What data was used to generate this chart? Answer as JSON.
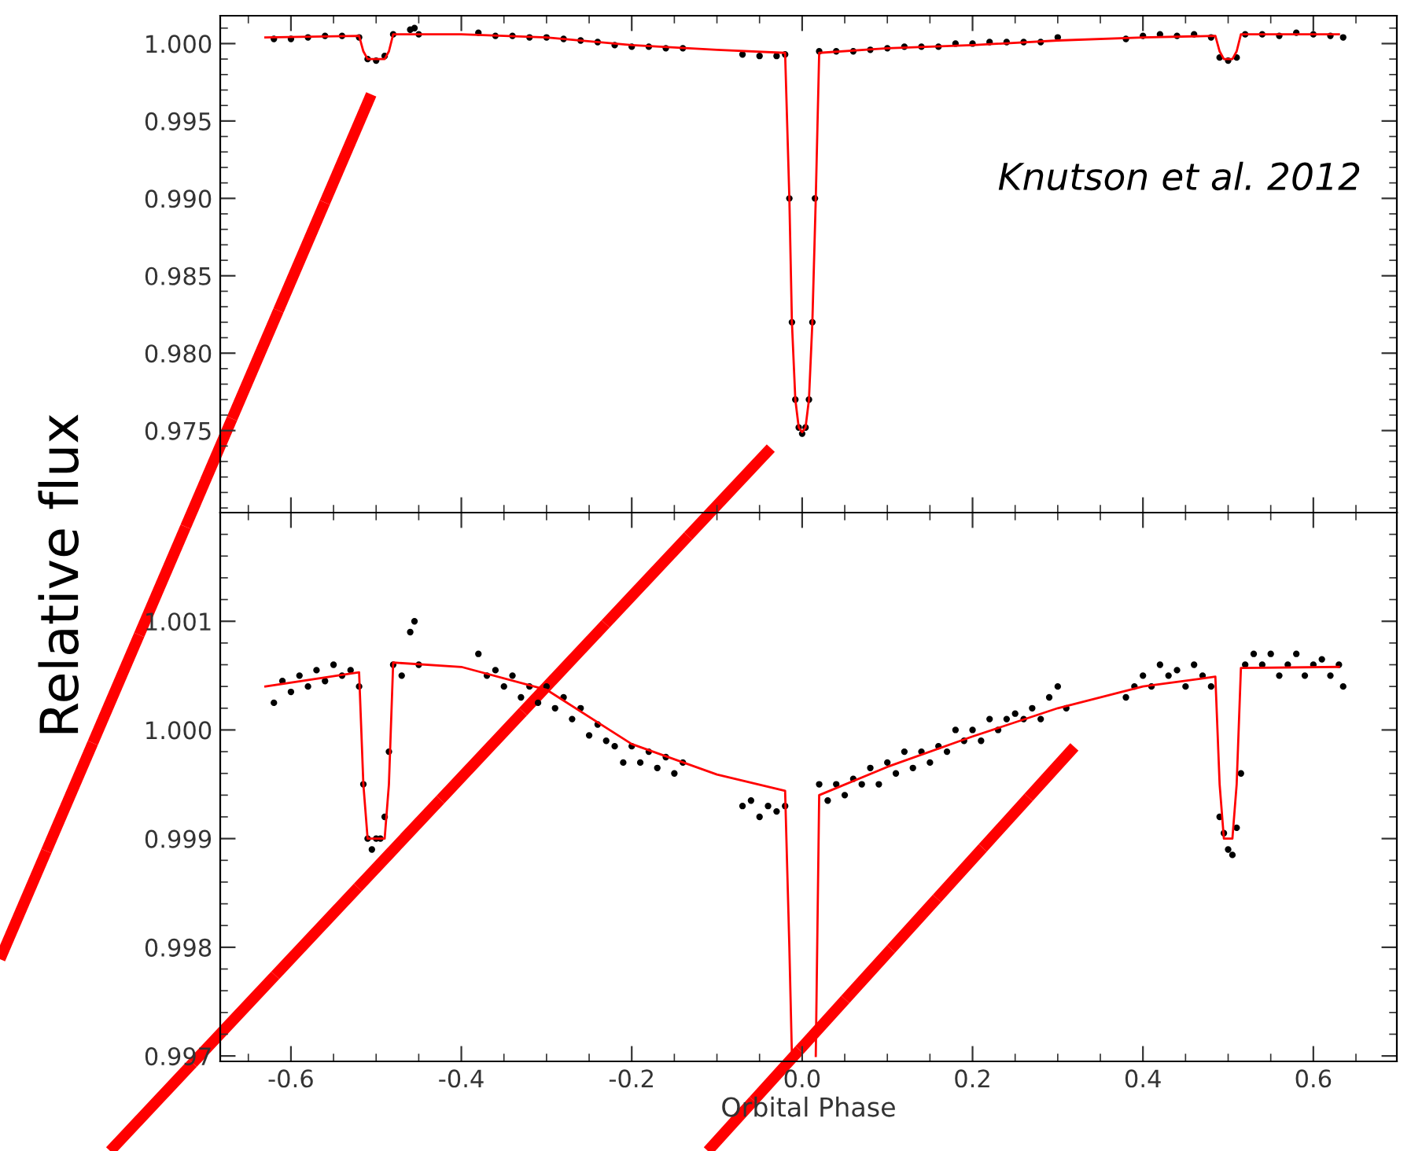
{
  "chart_data": [
    {
      "type": "scatter",
      "ylabel": "Relative flux",
      "annotations": [
        "Knutson et al. 2012"
      ],
      "xlim": [
        -0.683,
        0.698
      ],
      "ylim": [
        0.9697,
        1.0018
      ],
      "xticks": [
        -0.6,
        -0.4,
        -0.2,
        0,
        0.2,
        0.4,
        0.6
      ],
      "yticks": [
        {
          "value": 0.975,
          "label": "0.975"
        },
        {
          "value": 0.98,
          "label": "0.980"
        },
        {
          "value": 0.985,
          "label": "0.985"
        },
        {
          "value": 0.99,
          "label": "0.990"
        },
        {
          "value": 0.995,
          "label": "0.995"
        },
        {
          "value": 1.0,
          "label": "1.000"
        }
      ],
      "tick_labels": "y",
      "grid": false,
      "legend": false,
      "series": [
        {
          "color": "#000000",
          "marker": "circle",
          "x": [
            -0.62,
            -0.6,
            -0.58,
            -0.56,
            -0.54,
            -0.52,
            -0.51,
            -0.5,
            -0.49,
            -0.48,
            -0.46,
            -0.455,
            -0.45,
            -0.38,
            -0.36,
            -0.34,
            -0.32,
            -0.3,
            -0.28,
            -0.26,
            -0.24,
            -0.22,
            -0.2,
            -0.18,
            -0.16,
            -0.14,
            -0.07,
            -0.05,
            -0.03,
            -0.02,
            -0.015,
            -0.012,
            -0.008,
            -0.004,
            0.0,
            0.004,
            0.008,
            0.012,
            0.015,
            0.02,
            0.04,
            0.06,
            0.08,
            0.1,
            0.12,
            0.14,
            0.16,
            0.18,
            0.2,
            0.22,
            0.24,
            0.26,
            0.28,
            0.3,
            0.38,
            0.4,
            0.42,
            0.44,
            0.46,
            0.48,
            0.49,
            0.5,
            0.51,
            0.52,
            0.54,
            0.56,
            0.58,
            0.6,
            0.62,
            0.635
          ],
          "values": [
            1.0003,
            1.0003,
            1.0004,
            1.0005,
            1.0005,
            1.0004,
            0.999,
            0.9989,
            0.9992,
            1.0006,
            1.0009,
            1.001,
            1.0006,
            1.0007,
            1.0005,
            1.0005,
            1.0004,
            1.0004,
            1.0003,
            1.0002,
            1.0001,
            0.9999,
            0.9998,
            0.9998,
            0.9997,
            0.9997,
            0.9993,
            0.9992,
            0.9992,
            0.9993,
            0.99,
            0.982,
            0.977,
            0.9752,
            0.9748,
            0.9752,
            0.977,
            0.982,
            0.99,
            0.9995,
            0.9995,
            0.9995,
            0.9996,
            0.9997,
            0.9998,
            0.9998,
            0.9998,
            1.0,
            1.0,
            1.0001,
            1.0001,
            1.0001,
            1.0001,
            1.0004,
            1.0003,
            1.0005,
            1.0006,
            1.0005,
            1.0006,
            1.0004,
            0.9991,
            0.9989,
            0.9991,
            1.0006,
            1.0006,
            1.0005,
            1.0007,
            1.0006,
            1.0005,
            1.0004
          ]
        },
        {
          "type": "line",
          "color": "#ff0000",
          "marker": "none",
          "line_style": "solid",
          "x": [
            -0.63,
            -0.52,
            -0.515,
            -0.51,
            -0.49,
            -0.485,
            -0.48,
            -0.4,
            -0.3,
            -0.2,
            -0.1,
            -0.02,
            -0.015,
            -0.012,
            -0.008,
            -0.004,
            0.0,
            0.004,
            0.008,
            0.012,
            0.016,
            0.02,
            0.1,
            0.2,
            0.3,
            0.4,
            0.485,
            0.49,
            0.495,
            0.505,
            0.51,
            0.515,
            0.63
          ],
          "values": [
            1.0004,
            1.0005,
            0.9995,
            0.999,
            0.999,
            0.9995,
            1.0006,
            1.0006,
            1.0004,
            0.9999,
            0.9996,
            0.9994,
            0.99,
            0.982,
            0.977,
            0.9752,
            0.9749,
            0.9752,
            0.977,
            0.982,
            0.99,
            0.9994,
            0.9997,
            0.9999,
            1.0002,
            1.0004,
            1.0005,
            0.9995,
            0.999,
            0.999,
            0.9995,
            1.0006,
            1.0006
          ]
        }
      ]
    },
    {
      "type": "scatter",
      "xlabel": "Orbital Phase",
      "xlim": [
        -0.683,
        0.698
      ],
      "ylim": [
        0.99695,
        1.002
      ],
      "xticks": [
        -0.6,
        -0.4,
        -0.2,
        {
          "value": 0,
          "label": "0.0"
        },
        0.2,
        0.4,
        0.6
      ],
      "yticks": [
        {
          "value": 0.997,
          "label": "0.997"
        },
        {
          "value": 0.998,
          "label": "0.998"
        },
        {
          "value": 0.999,
          "label": "0.999"
        },
        {
          "value": 1.0,
          "label": "1.000"
        },
        {
          "value": 1.001,
          "label": "1.001"
        }
      ],
      "grid": false,
      "legend": false,
      "series": [
        {
          "color": "#000000",
          "marker": "circle",
          "x": [
            -0.62,
            -0.61,
            -0.6,
            -0.59,
            -0.58,
            -0.57,
            -0.56,
            -0.55,
            -0.54,
            -0.53,
            -0.52,
            -0.515,
            -0.51,
            -0.505,
            -0.5,
            -0.495,
            -0.49,
            -0.485,
            -0.48,
            -0.47,
            -0.46,
            -0.455,
            -0.45,
            -0.38,
            -0.37,
            -0.36,
            -0.35,
            -0.34,
            -0.33,
            -0.32,
            -0.31,
            -0.3,
            -0.29,
            -0.28,
            -0.27,
            -0.26,
            -0.25,
            -0.24,
            -0.23,
            -0.22,
            -0.21,
            -0.2,
            -0.19,
            -0.18,
            -0.17,
            -0.16,
            -0.15,
            -0.14,
            -0.07,
            -0.06,
            -0.05,
            -0.04,
            -0.03,
            -0.02,
            0.02,
            0.03,
            0.04,
            0.05,
            0.06,
            0.07,
            0.08,
            0.09,
            0.1,
            0.11,
            0.12,
            0.13,
            0.14,
            0.15,
            0.16,
            0.17,
            0.18,
            0.19,
            0.2,
            0.21,
            0.22,
            0.23,
            0.24,
            0.25,
            0.26,
            0.27,
            0.28,
            0.29,
            0.3,
            0.31,
            0.38,
            0.39,
            0.4,
            0.41,
            0.42,
            0.43,
            0.44,
            0.45,
            0.46,
            0.47,
            0.48,
            0.49,
            0.495,
            0.5,
            0.505,
            0.51,
            0.515,
            0.52,
            0.53,
            0.54,
            0.55,
            0.56,
            0.57,
            0.58,
            0.59,
            0.6,
            0.61,
            0.62,
            0.63,
            0.635
          ],
          "values": [
            1.00025,
            1.00045,
            1.00035,
            1.0005,
            1.0004,
            1.00055,
            1.00045,
            1.0006,
            1.0005,
            1.00055,
            1.0004,
            0.9995,
            0.999,
            0.9989,
            0.999,
            0.999,
            0.9992,
            0.9998,
            1.0006,
            1.0005,
            1.0009,
            1.001,
            1.0006,
            1.0007,
            1.0005,
            1.00055,
            1.0004,
            1.0005,
            1.0003,
            1.0004,
            1.00025,
            1.0004,
            1.0002,
            1.0003,
            1.0001,
            1.0002,
            0.99995,
            1.00005,
            0.9999,
            0.99985,
            0.9997,
            0.99985,
            0.9997,
            0.9998,
            0.99965,
            0.99975,
            0.9996,
            0.9997,
            0.9993,
            0.99935,
            0.9992,
            0.9993,
            0.99925,
            0.9993,
            0.9995,
            0.99935,
            0.9995,
            0.9994,
            0.99955,
            0.9995,
            0.99965,
            0.9995,
            0.9997,
            0.9996,
            0.9998,
            0.99965,
            0.9998,
            0.9997,
            0.99985,
            0.9998,
            1.0,
            0.9999,
            1.0,
            0.9999,
            1.0001,
            1.0,
            1.0001,
            1.00015,
            1.0001,
            1.0002,
            1.0001,
            1.0003,
            1.0004,
            1.0002,
            1.0003,
            1.0004,
            1.0005,
            1.0004,
            1.0006,
            1.0005,
            1.00055,
            1.0004,
            1.0006,
            1.0005,
            1.0004,
            0.9992,
            0.99905,
            0.9989,
            0.99885,
            0.9991,
            0.9996,
            1.0006,
            1.0007,
            1.0006,
            1.0007,
            1.0005,
            1.0006,
            1.0007,
            1.0005,
            1.0006,
            1.00065,
            1.0005,
            1.0006,
            1.0004
          ]
        },
        {
          "type": "line",
          "color": "#ff0000",
          "marker": "none",
          "line_style": "solid",
          "x": [
            -0.63,
            -0.52,
            -0.515,
            -0.51,
            -0.49,
            -0.485,
            -0.48,
            -0.4,
            -0.3,
            -0.2,
            -0.1,
            -0.02,
            -0.015,
            -0.012,
            0.0,
            0.016,
            0.02,
            0.1,
            0.2,
            0.3,
            0.4,
            0.485,
            0.49,
            0.495,
            0.505,
            0.51,
            0.515,
            0.63
          ],
          "values": [
            1.0004,
            1.00053,
            0.9995,
            0.999,
            0.999,
            0.9995,
            1.00062,
            1.00058,
            1.00037,
            0.99987,
            0.99959,
            0.99944,
            0.998,
            0.997,
            null,
            0.997,
            0.9994,
            0.99966,
            0.99994,
            1.0002,
            1.0004,
            1.00049,
            0.9995,
            0.999,
            0.999,
            0.9995,
            1.00057,
            1.00058
          ]
        }
      ]
    }
  ]
}
